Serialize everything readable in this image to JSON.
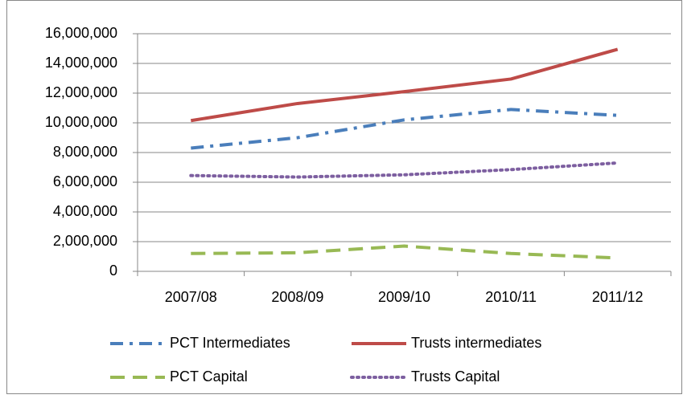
{
  "chart_data": {
    "type": "line",
    "categories": [
      "2007/08",
      "2008/09",
      "2009/10",
      "2010/11",
      "2011/12"
    ],
    "series": [
      {
        "name": "PCT Intermediates",
        "color": "#4a7ebb",
        "line_style": "dashdot",
        "values": [
          8300000,
          9000000,
          10200000,
          10900000,
          10500000
        ]
      },
      {
        "name": "Trusts intermediates",
        "color": "#be4b48",
        "line_style": "solid",
        "values": [
          10150000,
          11300000,
          12100000,
          12950000,
          14950000
        ]
      },
      {
        "name": "PCT Capital",
        "color": "#98b954",
        "line_style": "dash",
        "values": [
          1200000,
          1250000,
          1700000,
          1200000,
          900000
        ]
      },
      {
        "name": "Trusts Capital",
        "color": "#7d5fa0",
        "line_style": "dot",
        "values": [
          6450000,
          6350000,
          6500000,
          6850000,
          7300000
        ]
      }
    ],
    "ylim": [
      0,
      16000000
    ],
    "yticks": [
      {
        "value": 0,
        "label": "0"
      },
      {
        "value": 2000000,
        "label": "2,000,000"
      },
      {
        "value": 4000000,
        "label": "4,000,000"
      },
      {
        "value": 6000000,
        "label": "6,000,000"
      },
      {
        "value": 8000000,
        "label": "8,000,000"
      },
      {
        "value": 10000000,
        "label": "10,000,000"
      },
      {
        "value": 12000000,
        "label": "12,000,000"
      },
      {
        "value": 14000000,
        "label": "14,000,000"
      },
      {
        "value": 16000000,
        "label": "16,000,000"
      }
    ],
    "grid": true,
    "legend": "bottom"
  }
}
